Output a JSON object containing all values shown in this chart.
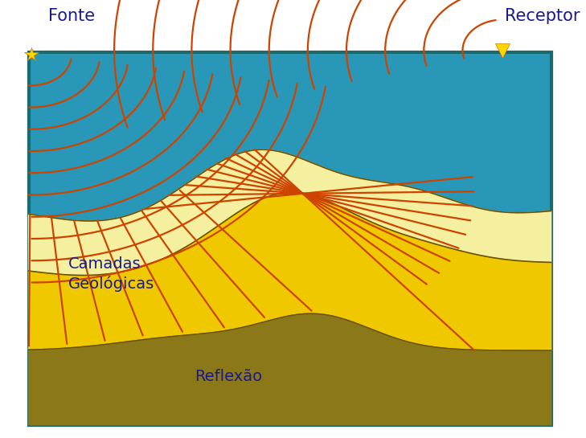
{
  "bg_color": "#2998b8",
  "layer1_color": "#f5f0a0",
  "layer2_color": "#f0c800",
  "layer3_color": "#8b7818",
  "border_color": "#1a6b70",
  "wave_color": "#cc4400",
  "wave_linewidth": 1.6,
  "text_color": "#1a1a8c",
  "fonte_label": "Fonte",
  "receptor_label": "Receptor",
  "camadas_label": "Camadas\nGeológicas",
  "reflexao_label": "Reflexão",
  "fig_width": 7.29,
  "fig_height": 5.45,
  "dpi": 100
}
